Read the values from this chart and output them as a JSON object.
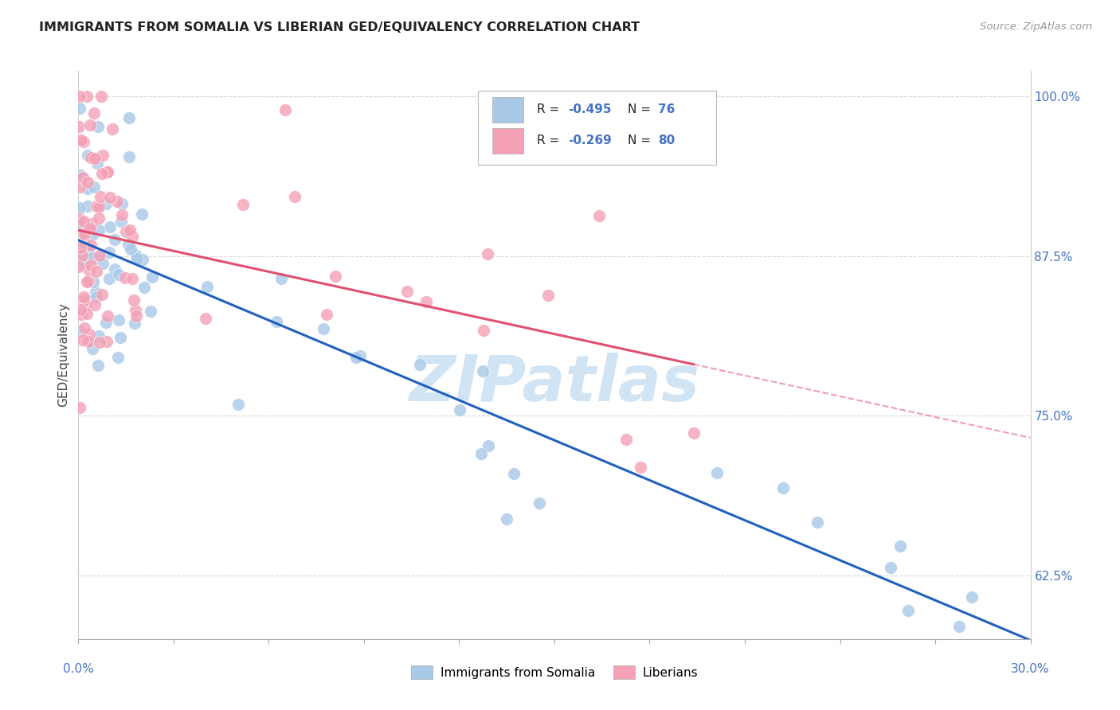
{
  "title": "IMMIGRANTS FROM SOMALIA VS LIBERIAN GED/EQUIVALENCY CORRELATION CHART",
  "source": "Source: ZipAtlas.com",
  "ylabel": "GED/Equivalency",
  "xlim": [
    0.0,
    0.3
  ],
  "ylim": [
    0.575,
    1.02
  ],
  "yticks": [
    0.625,
    0.75,
    0.875,
    1.0
  ],
  "ytick_labels": [
    "62.5%",
    "75.0%",
    "87.5%",
    "100.0%"
  ],
  "xtick_labels": [
    "0.0%",
    "30.0%"
  ],
  "somalia_color": "#a8c8e8",
  "liberia_color": "#f4a0b5",
  "somalia_line_color": "#2060c0",
  "liberia_line_color": "#e05070",
  "watermark": "ZIPatlas",
  "watermark_color": "#d0e4f4",
  "background_color": "#ffffff",
  "grid_color": "#d8d8d8",
  "legend_r1": "R = -0.495",
  "legend_n1": "N = 76",
  "legend_r2": "R = -0.269",
  "legend_n2": "N = 80",
  "tick_label_color": "#4472c4",
  "r_text_color": "#222222",
  "n_text_color": "#4472c4"
}
